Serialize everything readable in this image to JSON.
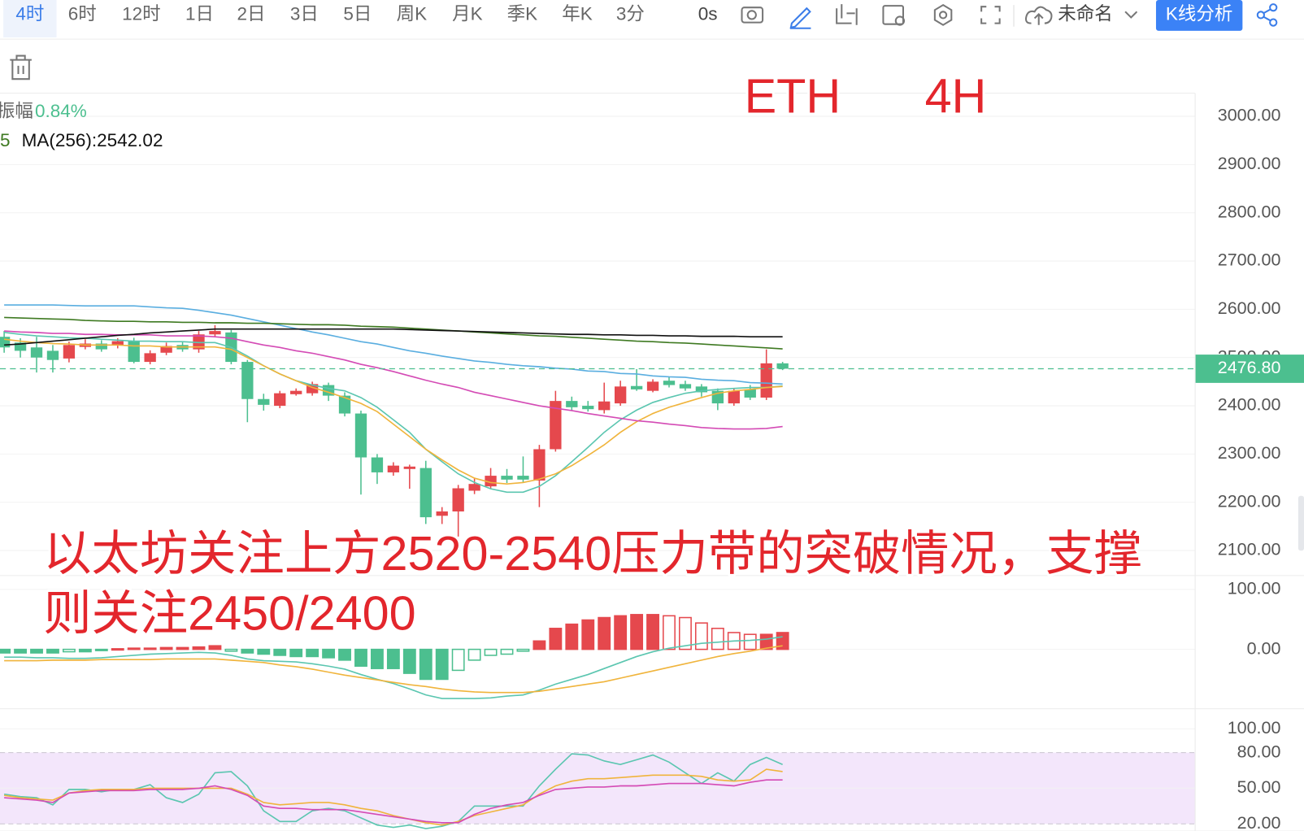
{
  "toolbar": {
    "periods": [
      "4时",
      "6时",
      "12时",
      "1日",
      "2日",
      "3日",
      "5日",
      "周K",
      "月K",
      "季K",
      "年K",
      "3分"
    ],
    "countdown": "0s",
    "chart_name": "未命名",
    "analysis_button": "K线分析"
  },
  "legend": {
    "amplitude_label": "振幅",
    "amplitude_value": "0.84%",
    "ma_fragment": "5",
    "ma_text": "MA(256):2542.02"
  },
  "annotations": {
    "symbol": "ETH",
    "timeframe": "4H",
    "note_lines": [
      "以太坊关注上方2520-2540压力带的突破情况，支撑",
      "则关注2450/2400"
    ]
  },
  "chart_data": [
    {
      "type": "candlestick",
      "up_color": "#e5484d",
      "down_color": "#4cbf8f",
      "open": [
        2543,
        2531,
        2521,
        2514,
        2498,
        2522,
        2529,
        2526,
        2534,
        2491,
        2510,
        2526,
        2517,
        2548,
        2552,
        2491,
        2414,
        2400,
        2424,
        2426,
        2443,
        2421,
        2384,
        2293,
        2262,
        2269,
        2271,
        2172,
        2181,
        2224,
        2233,
        2255,
        2255,
        2245,
        2310,
        2410,
        2400,
        2391,
        2405,
        2441,
        2431,
        2452,
        2445,
        2440,
        2431,
        2405,
        2434,
        2417,
        2488
      ],
      "high": [
        2555,
        2540,
        2543,
        2526,
        2533,
        2538,
        2536,
        2540,
        2541,
        2515,
        2531,
        2533,
        2555,
        2567,
        2557,
        2495,
        2425,
        2431,
        2436,
        2450,
        2448,
        2428,
        2390,
        2300,
        2283,
        2278,
        2286,
        2190,
        2236,
        2250,
        2271,
        2269,
        2295,
        2319,
        2431,
        2419,
        2410,
        2448,
        2452,
        2476,
        2455,
        2460,
        2452,
        2445,
        2436,
        2436,
        2443,
        2517,
        2491
      ],
      "low": [
        2510,
        2500,
        2469,
        2469,
        2490,
        2517,
        2512,
        2519,
        2488,
        2486,
        2505,
        2512,
        2510,
        2543,
        2486,
        2366,
        2390,
        2395,
        2421,
        2421,
        2410,
        2378,
        2216,
        2238,
        2255,
        2228,
        2155,
        2155,
        2129,
        2217,
        2228,
        2240,
        2240,
        2190,
        2305,
        2390,
        2388,
        2384,
        2400,
        2431,
        2428,
        2438,
        2431,
        2419,
        2391,
        2400,
        2412,
        2412,
        2474
      ],
      "close": [
        2521,
        2514,
        2500,
        2495,
        2526,
        2529,
        2517,
        2534,
        2491,
        2509,
        2524,
        2517,
        2548,
        2555,
        2491,
        2414,
        2402,
        2426,
        2431,
        2445,
        2421,
        2384,
        2293,
        2262,
        2276,
        2274,
        2169,
        2181,
        2229,
        2238,
        2255,
        2247,
        2247,
        2310,
        2410,
        2397,
        2393,
        2409,
        2440,
        2434,
        2450,
        2443,
        2436,
        2428,
        2405,
        2431,
        2417,
        2488,
        2476.8
      ],
      "series": [
        {
          "color": "#5bc6b0",
          "values": [
            2552,
            2548,
            2545,
            2543,
            2541,
            2540,
            2538,
            2536,
            2534,
            2534,
            2533,
            2533,
            2531,
            2531,
            2521,
            2503,
            2483,
            2466,
            2452,
            2443,
            2436,
            2431,
            2417,
            2397,
            2371,
            2345,
            2310,
            2284,
            2259,
            2241,
            2228,
            2221,
            2221,
            2233,
            2255,
            2284,
            2314,
            2345,
            2371,
            2391,
            2407,
            2417,
            2426,
            2431,
            2434,
            2436,
            2438,
            2438,
            2441
          ]
        },
        {
          "color": "#f0b43c",
          "values": [
            2538,
            2534,
            2531,
            2529,
            2528,
            2526,
            2526,
            2526,
            2524,
            2524,
            2522,
            2522,
            2522,
            2522,
            2517,
            2500,
            2483,
            2466,
            2452,
            2438,
            2428,
            2417,
            2405,
            2388,
            2362,
            2336,
            2310,
            2288,
            2267,
            2250,
            2241,
            2238,
            2241,
            2248,
            2259,
            2276,
            2297,
            2319,
            2345,
            2367,
            2384,
            2397,
            2407,
            2417,
            2426,
            2431,
            2434,
            2438,
            2440
          ]
        },
        {
          "color": "#5aaee0",
          "values": [
            2609,
            2609,
            2609,
            2609,
            2608,
            2607,
            2607,
            2607,
            2607,
            2605,
            2603,
            2602,
            2598,
            2593,
            2588,
            2581,
            2574,
            2567,
            2560,
            2553,
            2547,
            2540,
            2533,
            2528,
            2521,
            2514,
            2509,
            2503,
            2498,
            2493,
            2490,
            2486,
            2483,
            2481,
            2478,
            2476,
            2472,
            2471,
            2467,
            2466,
            2462,
            2460,
            2459,
            2455,
            2453,
            2452,
            2448,
            2447,
            2445
          ]
        },
        {
          "color": "#d44bb5",
          "values": [
            2555,
            2553,
            2552,
            2550,
            2550,
            2548,
            2548,
            2547,
            2547,
            2547,
            2545,
            2545,
            2545,
            2543,
            2540,
            2533,
            2526,
            2521,
            2514,
            2509,
            2502,
            2495,
            2486,
            2479,
            2471,
            2462,
            2453,
            2445,
            2438,
            2428,
            2421,
            2414,
            2407,
            2400,
            2395,
            2390,
            2384,
            2379,
            2374,
            2369,
            2366,
            2362,
            2359,
            2355,
            2353,
            2352,
            2352,
            2353,
            2357
          ]
        },
        {
          "color": "#3f7a22",
          "values": [
            2583,
            2582,
            2581,
            2580,
            2579,
            2577,
            2576,
            2575,
            2575,
            2574,
            2574,
            2573,
            2573,
            2572,
            2572,
            2571,
            2571,
            2570,
            2569,
            2568,
            2568,
            2567,
            2565,
            2564,
            2563,
            2561,
            2559,
            2557,
            2555,
            2553,
            2551,
            2549,
            2547,
            2545,
            2544,
            2542,
            2540,
            2538,
            2536,
            2534,
            2533,
            2531,
            2530,
            2528,
            2526,
            2524,
            2522,
            2520,
            2518
          ]
        },
        {
          "color": "#111111",
          "values": [
            2526,
            2528,
            2531,
            2534,
            2537,
            2540,
            2543,
            2546,
            2548,
            2551,
            2553,
            2555,
            2557,
            2559,
            2559,
            2559,
            2559,
            2559,
            2559,
            2559,
            2559,
            2559,
            2559,
            2559,
            2559,
            2558,
            2557,
            2556,
            2555,
            2554,
            2553,
            2552,
            2551,
            2550,
            2549,
            2548,
            2548,
            2547,
            2547,
            2546,
            2546,
            2545,
            2545,
            2544,
            2544,
            2544,
            2543,
            2543,
            2543
          ]
        }
      ],
      "last_price": {
        "value": 2476.8,
        "label": "2476.80",
        "color": "#4cbf8f"
      },
      "ylim": [
        2048,
        3048
      ],
      "yticks": [
        {
          "value": 3000,
          "label": "3000.00"
        },
        {
          "value": 2900,
          "label": "2900.00"
        },
        {
          "value": 2800,
          "label": "2800.00"
        },
        {
          "value": 2700,
          "label": "2700.00"
        },
        {
          "value": 2600,
          "label": "2600.00"
        },
        {
          "value": 2500,
          "label": "2500.00"
        },
        {
          "value": 2400,
          "label": "2400.00"
        },
        {
          "value": 2300,
          "label": "2300.00"
        },
        {
          "value": 2200,
          "label": "2200.00"
        },
        {
          "value": 2100,
          "label": "2100.00"
        }
      ],
      "grid": true
    },
    {
      "type": "bar",
      "up_color": "#e5484d",
      "down_color": "#4cbf8f",
      "values": [
        -6,
        -6,
        -6,
        -6,
        -4,
        -4,
        -2,
        1,
        2,
        2,
        3,
        3,
        4,
        6,
        -3,
        -6,
        -8,
        -10,
        -12,
        -12,
        -14,
        -18,
        -28,
        -32,
        -32,
        -40,
        -50,
        -50,
        -35,
        -18,
        -10,
        -8,
        -3,
        14,
        35,
        42,
        49,
        53,
        56,
        58,
        58,
        56,
        53,
        44,
        35,
        28,
        25,
        25,
        28
      ],
      "series": [
        {
          "color": "#5bc6b0",
          "values": [
            -13,
            -13,
            -14,
            -14,
            -15,
            -15,
            -14,
            -12,
            -10,
            -8,
            -7,
            -6,
            -5,
            -6,
            -10,
            -16,
            -19,
            -20,
            -21,
            -24,
            -28,
            -33,
            -42,
            -50,
            -57,
            -66,
            -76,
            -82,
            -82,
            -82,
            -81,
            -78,
            -76,
            -68,
            -58,
            -50,
            -42,
            -32,
            -22,
            -12,
            -4,
            2,
            6,
            10,
            12,
            14,
            15,
            17,
            21
          ]
        },
        {
          "color": "#f0b43c",
          "values": [
            -19,
            -19,
            -19,
            -18,
            -18,
            -18,
            -17,
            -17,
            -17,
            -17,
            -16,
            -16,
            -16,
            -16,
            -18,
            -20,
            -22,
            -26,
            -29,
            -33,
            -38,
            -43,
            -47,
            -51,
            -55,
            -59,
            -62,
            -66,
            -69,
            -71,
            -72,
            -72,
            -72,
            -70,
            -66,
            -62,
            -58,
            -54,
            -48,
            -42,
            -36,
            -30,
            -24,
            -18,
            -12,
            -7,
            -3,
            2,
            6
          ]
        }
      ],
      "ylim": [
        -99,
        123
      ],
      "yticks": [
        {
          "value": 100,
          "label": "100.00"
        },
        {
          "value": 0,
          "label": "0.00"
        }
      ],
      "grid": true
    },
    {
      "type": "line",
      "series": [
        {
          "color": "#5bc6b0",
          "values": [
            45,
            43,
            42,
            36,
            49,
            49,
            47,
            49,
            49,
            53,
            42,
            38,
            45,
            63,
            64,
            52,
            31,
            22,
            22,
            31,
            33,
            31,
            25,
            19,
            17,
            19,
            16,
            18,
            22,
            35,
            35,
            35,
            35,
            52,
            66,
            79,
            78,
            73,
            70,
            74,
            78,
            72,
            63,
            54,
            63,
            56,
            70,
            76,
            70
          ]
        },
        {
          "color": "#f0b43c",
          "values": [
            44,
            42,
            41,
            40,
            46,
            48,
            49,
            49,
            49,
            50,
            50,
            50,
            50,
            50,
            50,
            45,
            38,
            36,
            37,
            38,
            38,
            36,
            33,
            31,
            27,
            24,
            21,
            19,
            22,
            27,
            30,
            33,
            36,
            45,
            52,
            56,
            58,
            58,
            59,
            60,
            61,
            61,
            61,
            60,
            57,
            56,
            57,
            66,
            64
          ]
        },
        {
          "color": "#d44bb5",
          "values": [
            42,
            41,
            40,
            38,
            46,
            47,
            48,
            48,
            48,
            49,
            49,
            49,
            50,
            52,
            49,
            44,
            35,
            33,
            33,
            32,
            32,
            32,
            30,
            28,
            26,
            24,
            22,
            21,
            21,
            28,
            33,
            36,
            38,
            44,
            49,
            50,
            51,
            51,
            52,
            52,
            53,
            54,
            54,
            54,
            53,
            52,
            55,
            57,
            57
          ]
        }
      ],
      "band": {
        "low": 20,
        "high": 80,
        "color": "#f3e6fb"
      },
      "ylim": [
        14,
        117
      ],
      "yticks": [
        {
          "value": 100,
          "label": "100.00"
        },
        {
          "value": 80,
          "label": "80.00"
        },
        {
          "value": 50,
          "label": "50.00"
        },
        {
          "value": 20,
          "label": "20.00"
        }
      ],
      "grid": true
    }
  ]
}
